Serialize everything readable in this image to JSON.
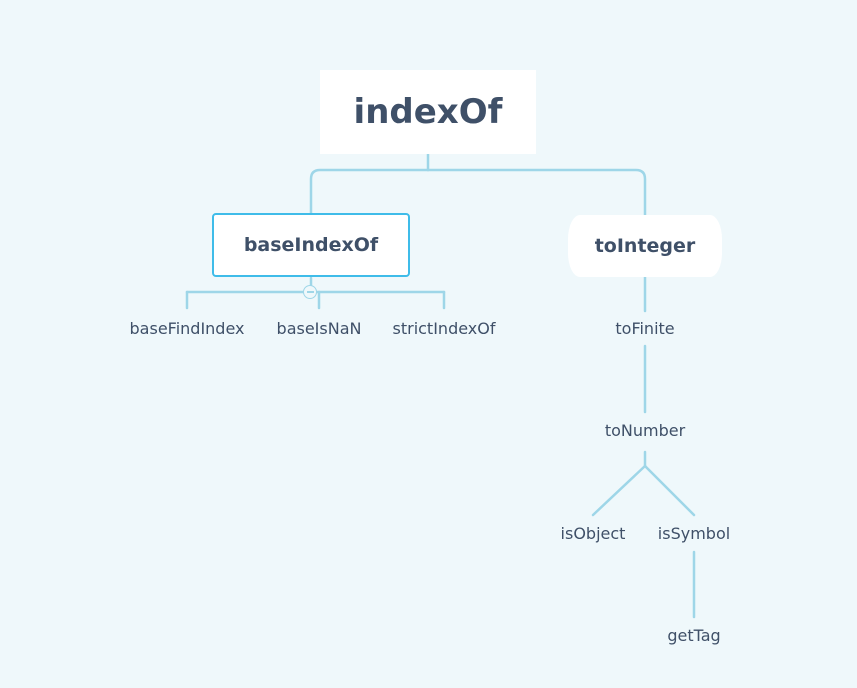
{
  "root": {
    "label": "indexOf"
  },
  "branches": {
    "left": {
      "label": "baseIndexOf",
      "children": [
        "baseFindIndex",
        "baseIsNaN",
        "strictIndexOf"
      ]
    },
    "right": {
      "label": "toInteger",
      "to_finite": "toFinite",
      "to_number": "toNumber",
      "is_object": "isObject",
      "is_symbol": "isSymbol",
      "get_tag": "getTag"
    }
  },
  "colors": {
    "background": "#eff8fb",
    "connector": "#9ed6e8",
    "selected_border": "#3fbce9",
    "text": "#3f5068"
  }
}
